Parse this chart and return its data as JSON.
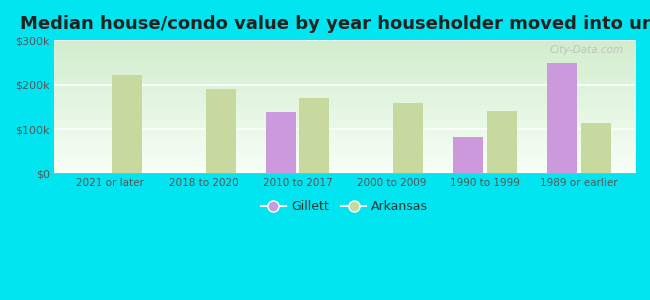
{
  "title": "Median house/condo value by year householder moved into unit",
  "categories": [
    "2021 or later",
    "2018 to 2020",
    "2010 to 2017",
    "2000 to 2009",
    "1990 to 1999",
    "1989 or earlier"
  ],
  "gillett": [
    null,
    null,
    138000,
    null,
    82000,
    248000
  ],
  "arkansas": [
    222000,
    190000,
    170000,
    158000,
    140000,
    113000
  ],
  "gillett_color": "#cc99dd",
  "arkansas_color": "#c8d9a0",
  "background_outer": "#00e5f0",
  "background_plot_grad_top": "#f0faf0",
  "background_plot_grad_bottom": "#d0eecc",
  "ylim": [
    0,
    300000
  ],
  "yticks": [
    0,
    100000,
    200000,
    300000
  ],
  "ytick_labels": [
    "$0",
    "$100k",
    "$200k",
    "$300k"
  ],
  "title_fontsize": 13,
  "watermark": "City-Data.com",
  "bar_width": 0.32
}
